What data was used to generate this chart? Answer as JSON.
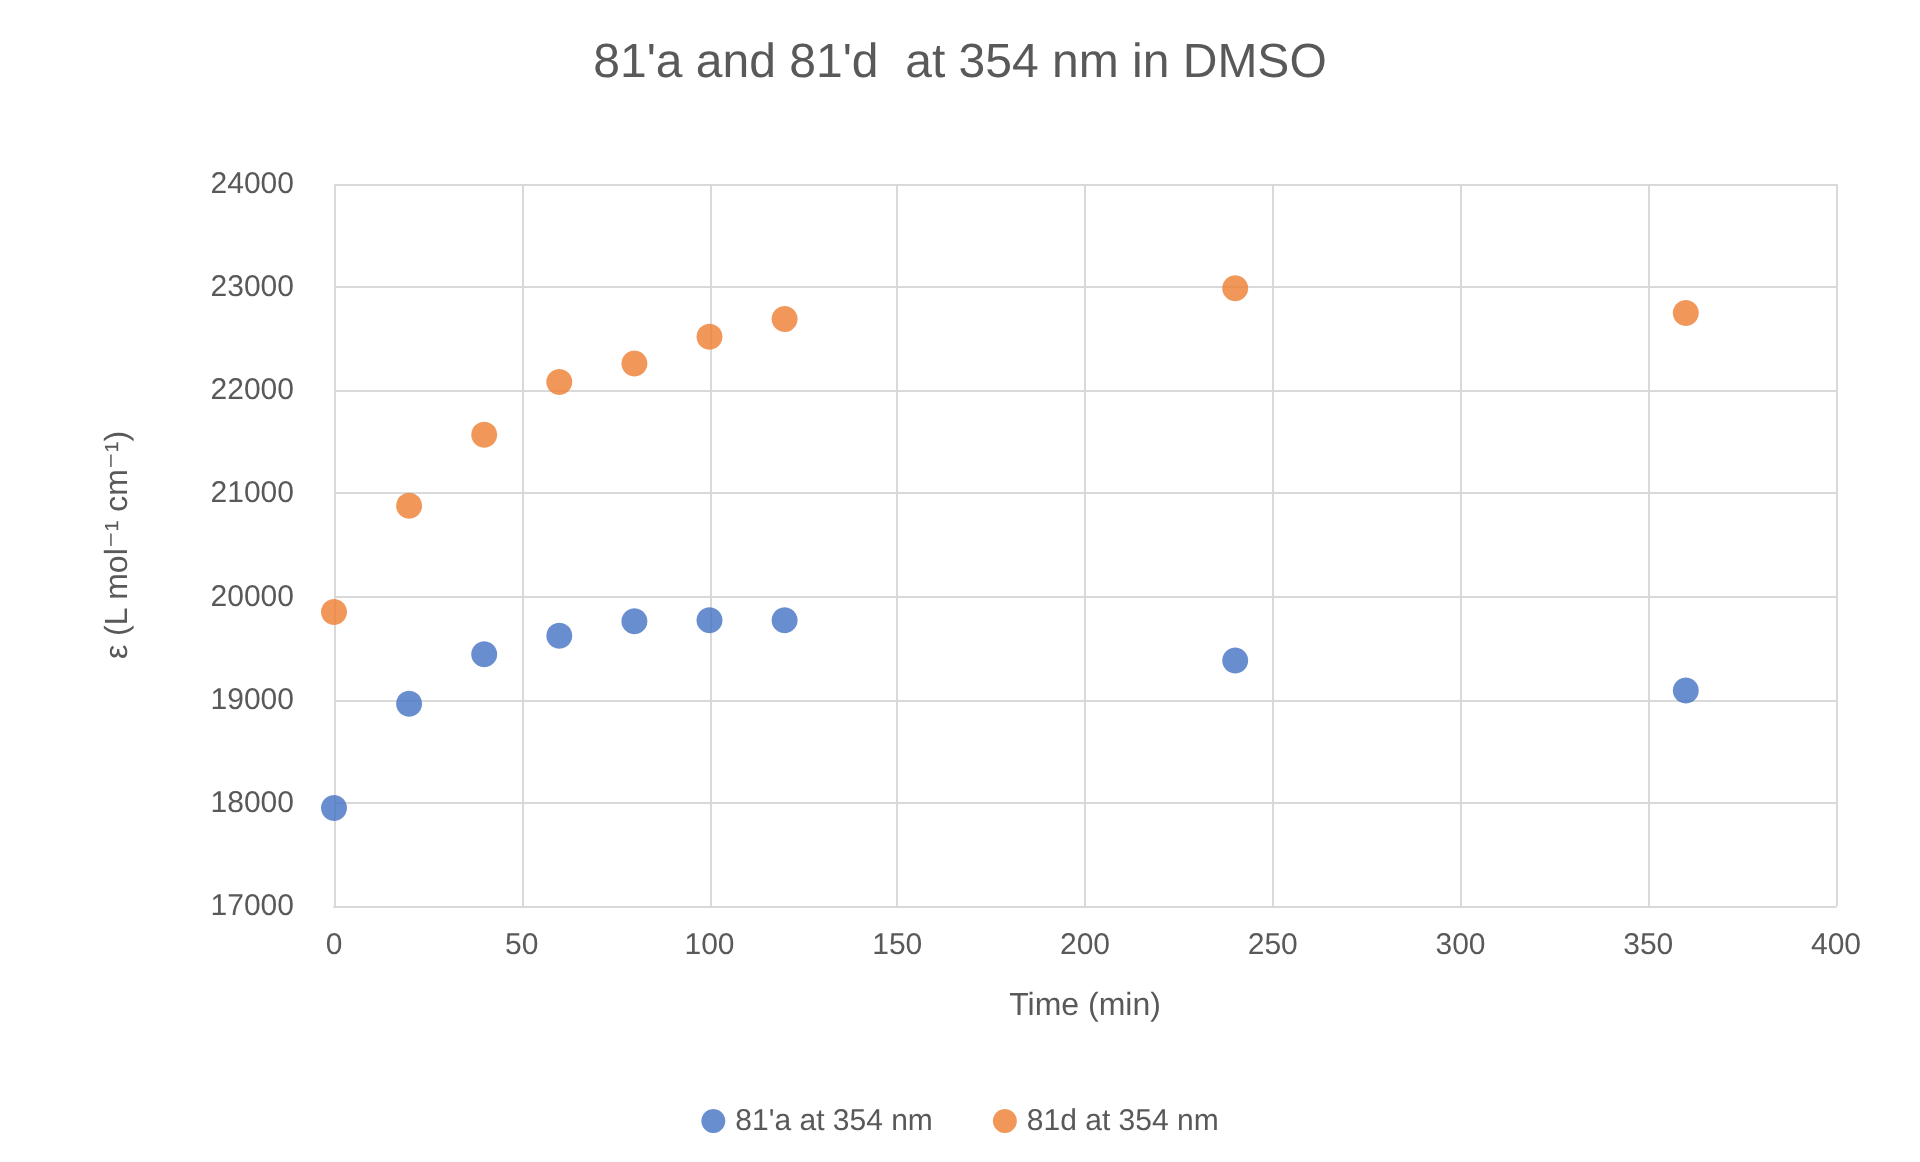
{
  "chart_data": {
    "type": "scatter",
    "title": "81'a and 81'd  at 354 nm in DMSO",
    "xlabel": "Time (min)",
    "ylabel": "ε (L mol⁻¹ cm⁻¹)",
    "x": [
      0,
      20,
      40,
      60,
      80,
      100,
      120,
      240,
      360
    ],
    "series": [
      {
        "name": "81'a at 354 nm",
        "color": "#4472c4",
        "values": [
          17950,
          18960,
          19440,
          19620,
          19760,
          19770,
          19770,
          19380,
          19090
        ]
      },
      {
        "name": "81d at 354 nm",
        "color": "#ed7d31",
        "values": [
          19850,
          20880,
          21570,
          22080,
          22260,
          22520,
          22690,
          22990,
          22750
        ]
      }
    ],
    "xlim": [
      0,
      400
    ],
    "xticks": [
      0,
      50,
      100,
      150,
      200,
      250,
      300,
      350,
      400
    ],
    "ylim": [
      17000,
      24000
    ],
    "yticks": [
      17000,
      18000,
      19000,
      20000,
      21000,
      22000,
      23000,
      24000
    ],
    "grid": true,
    "legend": "bottom",
    "marker": "circle"
  }
}
